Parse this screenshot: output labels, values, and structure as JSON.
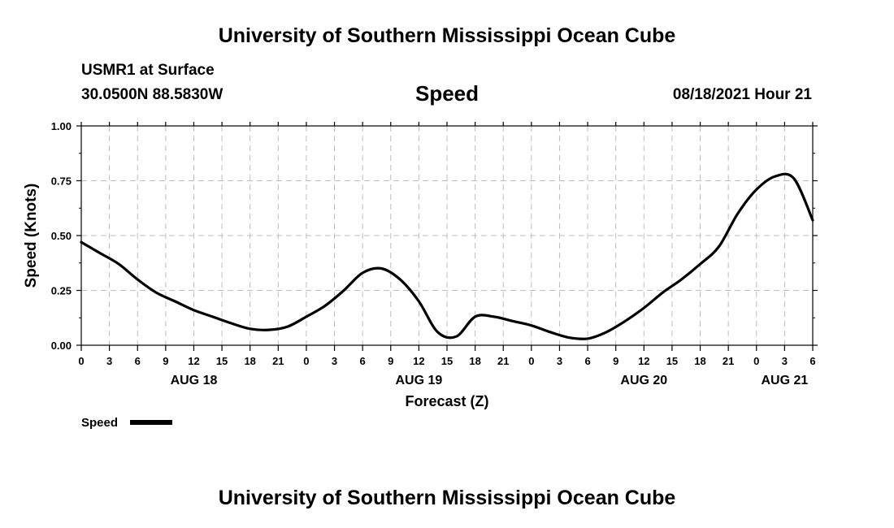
{
  "header": {
    "title": "University of Southern Mississippi Ocean Cube",
    "station": "USMR1 at Surface",
    "coordinates": "30.0500N  88.5830W",
    "variable": "Speed",
    "datetime": "08/18/2021 Hour 21"
  },
  "footer": {
    "title": "University of Southern Mississippi Ocean Cube"
  },
  "chart_data": {
    "type": "line",
    "title": "Speed",
    "xlabel": "Forecast (Z)",
    "ylabel": "Speed (Knots)",
    "ylim": [
      0,
      1
    ],
    "yticks": [
      "0.00",
      "0.25",
      "0.50",
      "0.75",
      "1.00"
    ],
    "xlim_hours": [
      0,
      78
    ],
    "xtick_step_hours": 3,
    "xtick_labels": [
      "0",
      "3",
      "6",
      "9",
      "12",
      "15",
      "18",
      "21",
      "0",
      "3",
      "6",
      "9",
      "12",
      "15",
      "18",
      "21",
      "0",
      "3",
      "6",
      "9",
      "12",
      "15",
      "18",
      "21",
      "0",
      "3",
      "6"
    ],
    "day_labels": [
      {
        "label": "AUG 18",
        "hour": 12
      },
      {
        "label": "AUG 19",
        "hour": 36
      },
      {
        "label": "AUG 20",
        "hour": 60
      },
      {
        "label": "AUG 21",
        "hour": 75
      }
    ],
    "grid": true,
    "legend": {
      "label": "Speed",
      "placement": "bottom-left"
    },
    "series": [
      {
        "name": "Speed",
        "color": "#000000",
        "x": [
          0,
          2,
          4,
          6,
          8,
          10,
          12,
          14,
          16,
          18,
          20,
          22,
          24,
          26,
          28,
          30,
          32,
          34,
          36,
          38,
          40,
          42,
          44,
          46,
          48,
          50,
          52,
          54,
          56,
          58,
          60,
          62,
          64,
          66,
          68,
          70,
          72,
          74,
          76,
          78
        ],
        "values": [
          0.47,
          0.42,
          0.37,
          0.3,
          0.24,
          0.2,
          0.16,
          0.13,
          0.1,
          0.075,
          0.07,
          0.085,
          0.13,
          0.18,
          0.25,
          0.33,
          0.35,
          0.3,
          0.2,
          0.06,
          0.04,
          0.13,
          0.13,
          0.11,
          0.09,
          0.06,
          0.035,
          0.03,
          0.06,
          0.11,
          0.17,
          0.24,
          0.3,
          0.37,
          0.45,
          0.6,
          0.71,
          0.77,
          0.76,
          0.57
        ]
      }
    ]
  }
}
